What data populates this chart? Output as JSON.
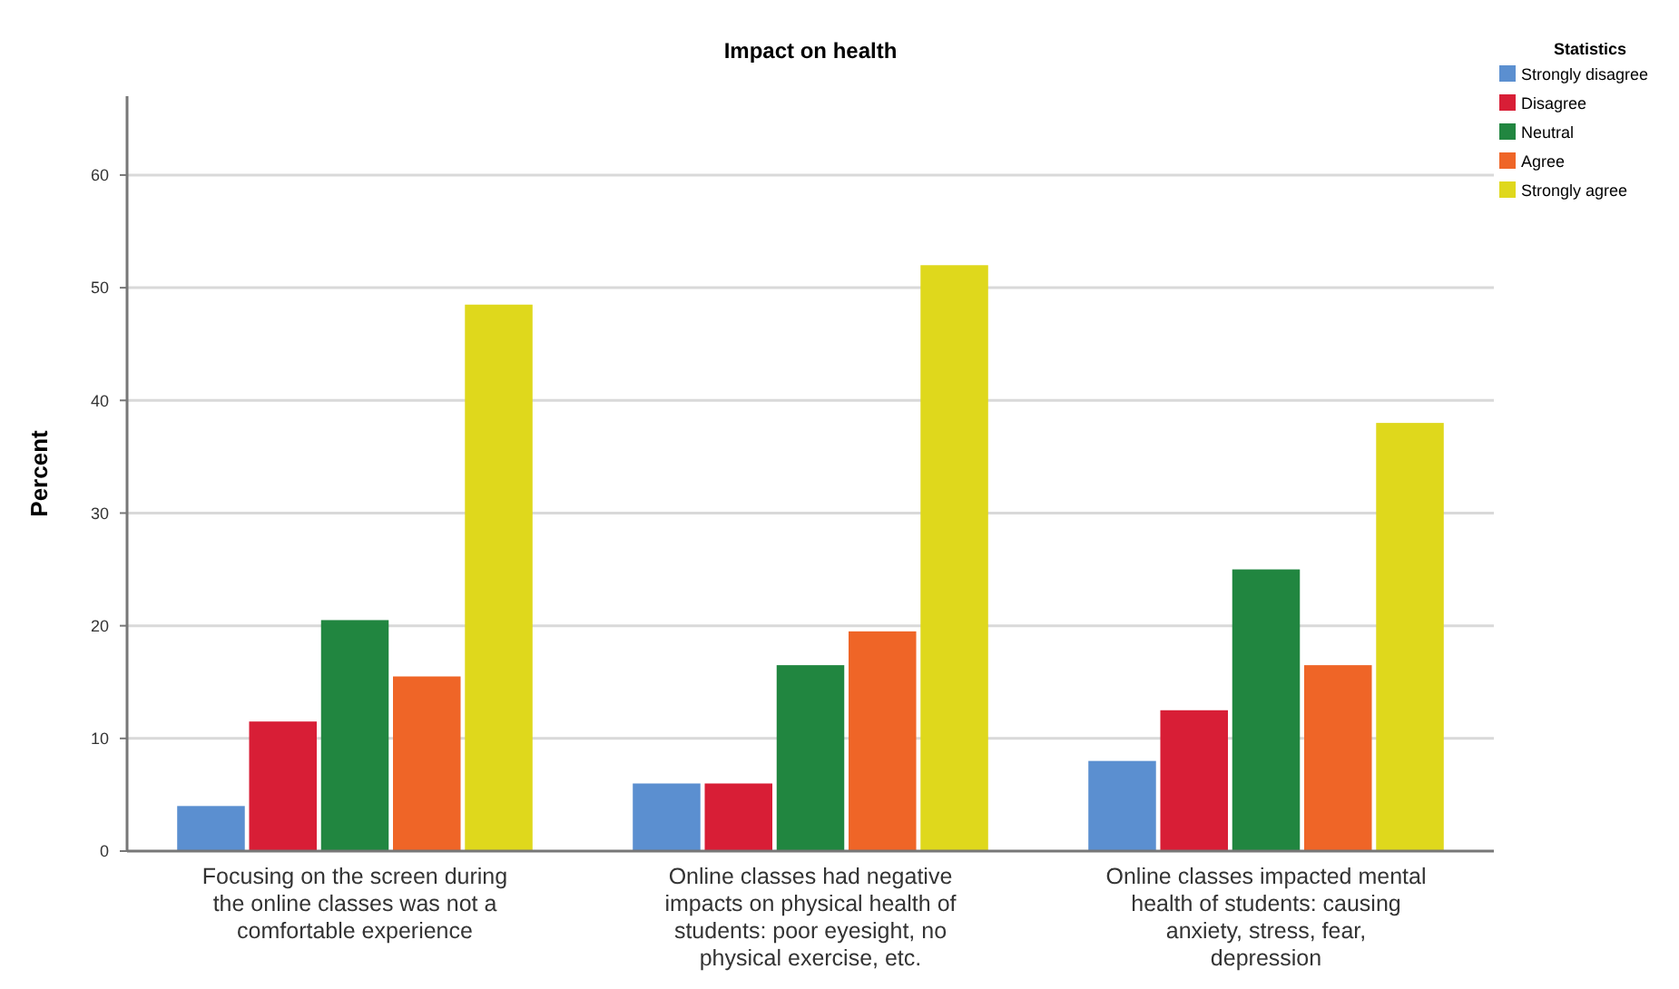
{
  "chart_data": {
    "type": "bar",
    "title": "Impact on health",
    "ylabel": "Percent",
    "legend_title": "Statistics",
    "legend": "top right",
    "categories": [
      "Focusing on the screen during the online classes was not a comfortable experience",
      "Online classes had negative impacts on physical health of students: poor eyesight, no physical exercise, etc.",
      "Online classes impacted mental health of students: causing anxiety, stress, fear, depression"
    ],
    "series": [
      {
        "name": "Strongly disagree",
        "color": "#5b8fd0",
        "values": [
          4,
          6,
          8
        ]
      },
      {
        "name": "Disagree",
        "color": "#d81e36",
        "values": [
          11.5,
          6,
          12.5
        ]
      },
      {
        "name": "Neutral",
        "color": "#218640",
        "values": [
          20.5,
          16.5,
          25
        ]
      },
      {
        "name": "Agree",
        "color": "#ef6527",
        "values": [
          15.5,
          19.5,
          16.5
        ]
      },
      {
        "name": "Strongly agree",
        "color": "#dfd81c",
        "values": [
          48.5,
          52,
          38
        ]
      }
    ],
    "ylim": [
      0,
      67
    ],
    "yticks": [
      0,
      10,
      20,
      30,
      40,
      50,
      60
    ],
    "grid": "y"
  }
}
